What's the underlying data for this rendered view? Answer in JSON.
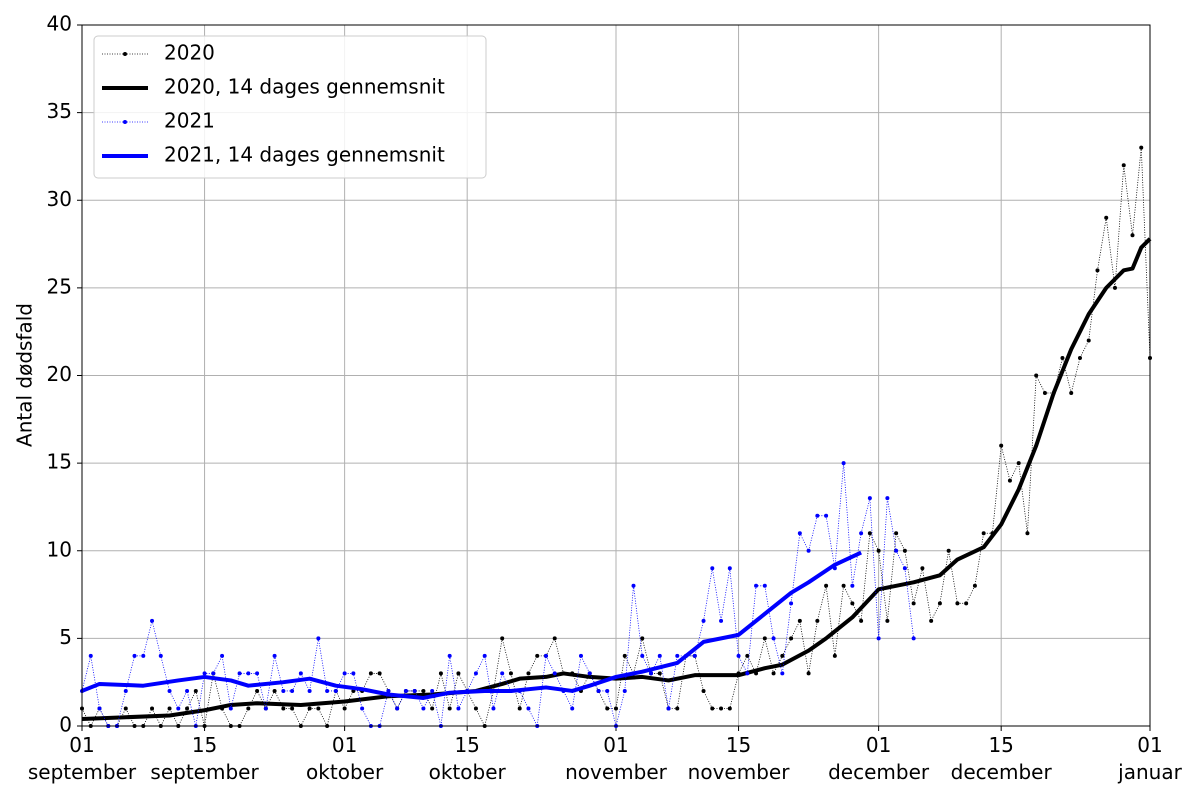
{
  "chart_data": {
    "type": "line",
    "y_label": "Antal dødsfald",
    "xlim": [
      0,
      122
    ],
    "ylim": [
      0,
      40
    ],
    "yticks": [
      0,
      5,
      10,
      15,
      20,
      25,
      30,
      35,
      40
    ],
    "xticks": [
      {
        "value": 0,
        "label": "01\nseptember"
      },
      {
        "value": 14,
        "label": "15\nseptember"
      },
      {
        "value": 30,
        "label": "01\noktober"
      },
      {
        "value": 44,
        "label": "15\noktober"
      },
      {
        "value": 61,
        "label": "01\nnovember"
      },
      {
        "value": 75,
        "label": "15\nnovember"
      },
      {
        "value": 91,
        "label": "01\ndecember"
      },
      {
        "value": 105,
        "label": "15\ndecember"
      },
      {
        "value": 122,
        "label": "01\njanuar"
      }
    ],
    "grid": true,
    "legend": "upper left",
    "series": [
      {
        "name": "2020",
        "color": "#000000",
        "linestyle": "dotted",
        "marker": true,
        "linewidth": 0.8,
        "x": [
          0,
          1,
          2,
          3,
          4,
          5,
          6,
          7,
          8,
          9,
          10,
          11,
          12,
          13,
          14,
          15,
          16,
          17,
          18,
          19,
          20,
          21,
          22,
          23,
          24,
          25,
          26,
          27,
          28,
          29,
          30,
          31,
          32,
          33,
          34,
          35,
          36,
          37,
          38,
          39,
          40,
          41,
          42,
          43,
          44,
          45,
          46,
          47,
          48,
          49,
          50,
          51,
          52,
          53,
          54,
          55,
          56,
          57,
          58,
          59,
          60,
          61,
          62,
          63,
          64,
          65,
          66,
          67,
          68,
          69,
          70,
          71,
          72,
          73,
          74,
          75,
          76,
          77,
          78,
          79,
          80,
          81,
          82,
          83,
          84,
          85,
          86,
          87,
          88,
          89,
          90,
          91,
          92,
          93,
          94,
          95,
          96,
          97,
          98,
          99,
          100,
          101,
          102,
          103,
          104,
          105,
          106,
          107,
          108,
          109,
          110,
          111,
          112,
          113,
          114,
          115,
          116,
          117,
          118,
          119,
          120,
          121,
          122
        ],
        "values": [
          1,
          0,
          1,
          0,
          0,
          1,
          0,
          0,
          1,
          0,
          1,
          0,
          1,
          2,
          0,
          3,
          1,
          0,
          0,
          1,
          2,
          1,
          2,
          1,
          1,
          0,
          1,
          1,
          0,
          2,
          1,
          2,
          2,
          3,
          3,
          2,
          1,
          2,
          2,
          2,
          1,
          3,
          1,
          3,
          2,
          1,
          0,
          2,
          5,
          3,
          1,
          3,
          4,
          4,
          5,
          3,
          3,
          2,
          3,
          2,
          1,
          1,
          4,
          3,
          5,
          3,
          3,
          1,
          1,
          4,
          4,
          2,
          1,
          1,
          1,
          3,
          4,
          3,
          5,
          3,
          4,
          5,
          6,
          3,
          6,
          8,
          4,
          8,
          7,
          6,
          11,
          10,
          6,
          11,
          10,
          7,
          9,
          6,
          7,
          10,
          7,
          7,
          8,
          11,
          11,
          16,
          14,
          15,
          11,
          20,
          19,
          19,
          21,
          19,
          21,
          22,
          26,
          29,
          25,
          32,
          28,
          33,
          21
        ]
      },
      {
        "name": "2020, 14 dages gennemsnit",
        "color": "#000000",
        "linestyle": "solid",
        "marker": false,
        "linewidth": 4,
        "x": [
          0,
          5,
          10,
          14,
          17,
          20,
          25,
          30,
          35,
          40,
          45,
          48,
          50,
          53,
          55,
          58,
          61,
          64,
          67,
          70,
          75,
          78,
          80,
          83,
          85,
          88,
          91,
          95,
          98,
          100,
          103,
          105,
          107,
          109,
          111,
          113,
          115,
          117,
          119,
          120,
          121,
          122
        ],
        "values": [
          0.4,
          0.5,
          0.6,
          0.9,
          1.2,
          1.3,
          1.2,
          1.4,
          1.7,
          1.8,
          2.0,
          2.4,
          2.7,
          2.8,
          3.0,
          2.8,
          2.7,
          2.8,
          2.6,
          2.9,
          2.9,
          3.3,
          3.5,
          4.3,
          5.0,
          6.2,
          7.8,
          8.2,
          8.6,
          9.5,
          10.2,
          11.5,
          13.5,
          16.0,
          19.0,
          21.5,
          23.5,
          25.0,
          26.0,
          26.1,
          27.3,
          27.8
        ]
      },
      {
        "name": "2021",
        "color": "#0000ff",
        "linestyle": "dotted",
        "marker": true,
        "linewidth": 0.8,
        "x": [
          0,
          1,
          2,
          3,
          4,
          5,
          6,
          7,
          8,
          9,
          10,
          11,
          12,
          13,
          14,
          15,
          16,
          17,
          18,
          19,
          20,
          21,
          22,
          23,
          24,
          25,
          26,
          27,
          28,
          29,
          30,
          31,
          32,
          33,
          34,
          35,
          36,
          37,
          38,
          39,
          40,
          41,
          42,
          43,
          44,
          45,
          46,
          47,
          48,
          49,
          50,
          51,
          52,
          53,
          54,
          55,
          56,
          57,
          58,
          59,
          60,
          61,
          62,
          63,
          64,
          65,
          66,
          67,
          68,
          69,
          70,
          71,
          72,
          73,
          74,
          75,
          76,
          77,
          78,
          79,
          80,
          81,
          82,
          83,
          84,
          85,
          86,
          87,
          88,
          89,
          90,
          91,
          92,
          93,
          94,
          95
        ],
        "values": [
          2,
          4,
          1,
          0,
          0,
          2,
          4,
          4,
          6,
          4,
          2,
          1,
          2,
          0,
          3,
          3,
          4,
          1,
          3,
          3,
          3,
          1,
          4,
          2,
          2,
          3,
          2,
          5,
          2,
          2,
          3,
          3,
          1,
          0,
          0,
          2,
          1,
          2,
          2,
          1,
          2,
          0,
          4,
          1,
          2,
          3,
          4,
          1,
          3,
          2,
          2,
          1,
          0,
          4,
          3,
          2,
          1,
          4,
          3,
          2,
          2,
          0,
          2,
          8,
          4,
          3,
          4,
          1,
          4,
          4,
          4,
          6,
          9,
          6,
          9,
          4,
          3,
          8,
          8,
          5,
          3,
          7,
          11,
          10,
          12,
          12,
          9,
          15,
          8,
          11,
          13,
          5,
          13,
          10,
          9,
          5
        ]
      },
      {
        "name": "2021, 14 dages gennemsnit",
        "color": "#0000ff",
        "linestyle": "solid",
        "marker": false,
        "linewidth": 4,
        "x": [
          0,
          2,
          7,
          11,
          14,
          17,
          19,
          23,
          26,
          29,
          32,
          35,
          37,
          39,
          42,
          46,
          49,
          53,
          56,
          58,
          61,
          64,
          68,
          71,
          75,
          78,
          81,
          83,
          86,
          89
        ],
        "values": [
          2.0,
          2.4,
          2.3,
          2.6,
          2.8,
          2.6,
          2.3,
          2.5,
          2.7,
          2.3,
          2.1,
          1.8,
          1.7,
          1.6,
          1.9,
          2.0,
          2.0,
          2.2,
          2.0,
          2.3,
          2.8,
          3.1,
          3.6,
          4.8,
          5.2,
          6.4,
          7.6,
          8.2,
          9.2,
          9.9
        ]
      }
    ]
  }
}
